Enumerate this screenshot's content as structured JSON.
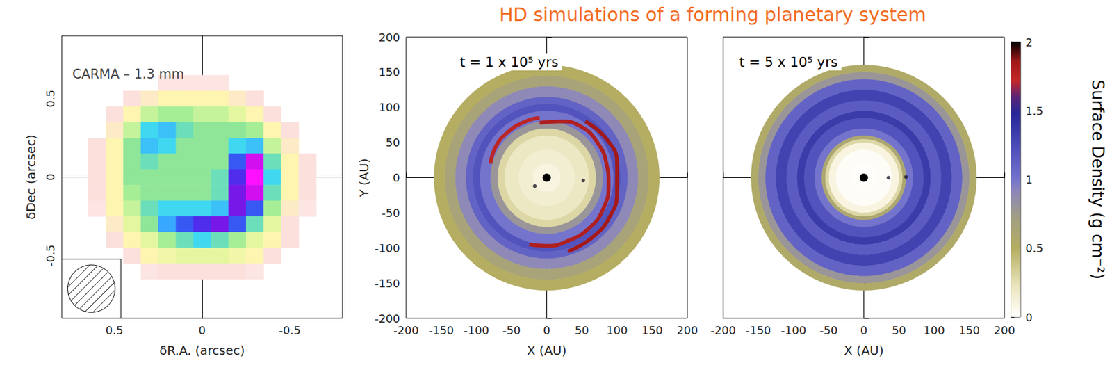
{
  "title": "HD simulations of a forming planetary system",
  "colorbar": {
    "range": [
      0,
      2
    ],
    "ticks": [
      0,
      0.5,
      1,
      1.5,
      2
    ],
    "label": "Surface Density (g cm⁻²)"
  },
  "chart_data": [
    {
      "type": "heatmap",
      "title": "CARMA – 1.3 mm",
      "xlabel": "δR.A. (arcsec)",
      "ylabel": "δDec (arcsec)",
      "xlim": [
        0.8,
        -0.8
      ],
      "xticks": [
        0.5,
        0,
        -0.5
      ],
      "ylim": [
        -0.9,
        0.9
      ],
      "yticks": [
        -0.5,
        0,
        0.5
      ],
      "x": [
        0.6,
        0.5,
        0.4,
        0.3,
        0.2,
        0.1,
        0,
        -0.1,
        -0.2,
        -0.3,
        -0.4,
        -0.5,
        -0.6
      ],
      "y": [
        0.6,
        0.5,
        0.4,
        0.3,
        0.2,
        0.1,
        0,
        -0.1,
        -0.2,
        -0.3,
        -0.4,
        -0.5,
        -0.6
      ],
      "cells": [
        [
          null,
          null,
          null,
          null,
          0.05,
          0.05,
          0.05,
          0.05,
          null,
          null,
          null,
          null,
          null
        ],
        [
          null,
          null,
          0.1,
          0.15,
          0.2,
          0.2,
          0.2,
          0.2,
          0.15,
          0.1,
          null,
          null,
          null
        ],
        [
          null,
          0.1,
          0.2,
          0.35,
          0.4,
          0.4,
          0.35,
          0.35,
          0.3,
          0.2,
          0.1,
          null,
          null
        ],
        [
          null,
          0.15,
          0.35,
          0.55,
          0.6,
          0.5,
          0.45,
          0.45,
          0.45,
          0.4,
          0.2,
          0.1,
          null
        ],
        [
          0.1,
          0.2,
          0.45,
          0.6,
          0.55,
          0.45,
          0.45,
          0.45,
          0.55,
          0.6,
          0.35,
          0.15,
          null
        ],
        [
          0.1,
          0.2,
          0.45,
          0.5,
          0.45,
          0.45,
          0.45,
          0.45,
          0.7,
          0.9,
          0.5,
          0.2,
          0.1
        ],
        [
          0.1,
          0.2,
          0.45,
          0.45,
          0.45,
          0.45,
          0.45,
          0.5,
          0.75,
          0.95,
          0.55,
          0.2,
          0.1
        ],
        [
          0.1,
          0.2,
          0.4,
          0.45,
          0.45,
          0.45,
          0.45,
          0.5,
          0.8,
          0.9,
          0.5,
          0.2,
          0.1
        ],
        [
          0.05,
          0.2,
          0.35,
          0.5,
          0.55,
          0.55,
          0.55,
          0.6,
          0.8,
          0.7,
          0.4,
          0.15,
          0.05
        ],
        [
          null,
          0.15,
          0.3,
          0.45,
          0.65,
          0.7,
          0.75,
          0.8,
          0.7,
          0.5,
          0.3,
          0.1,
          null
        ],
        [
          null,
          0.1,
          0.2,
          0.3,
          0.4,
          0.5,
          0.55,
          0.5,
          0.4,
          0.3,
          0.2,
          0.1,
          null
        ],
        [
          null,
          null,
          0.1,
          0.2,
          0.25,
          0.3,
          0.3,
          0.3,
          0.25,
          0.2,
          0.1,
          null,
          null
        ],
        [
          null,
          null,
          null,
          0.05,
          0.1,
          0.1,
          0.1,
          0.1,
          0.1,
          0.05,
          null,
          null,
          null
        ]
      ],
      "beam_diameter": 0.27
    },
    {
      "type": "disk",
      "title": "t = 1 x 10⁵ yrs",
      "xlabel": "X (AU)",
      "ylabel": "Y (AU)",
      "xlim": [
        -200,
        200
      ],
      "xticks": [
        -200,
        -150,
        -100,
        -50,
        0,
        50,
        100,
        150,
        200
      ],
      "ylim": [
        -200,
        200
      ],
      "yticks": [
        -200,
        -150,
        -100,
        -50,
        0,
        50,
        100,
        150,
        200
      ],
      "radii": [
        0,
        6,
        20,
        40,
        60,
        70,
        80,
        95,
        105,
        115,
        130,
        145,
        160
      ],
      "density": [
        2,
        0.1,
        0.15,
        0.2,
        0.3,
        0.8,
        1.0,
        1.2,
        1.1,
        0.9,
        0.65,
        0.5
      ],
      "arms": [
        {
          "density": 1.8,
          "points": [
            [
              -10,
              78
            ],
            [
              20,
              80
            ],
            [
              50,
              72
            ],
            [
              72,
              50
            ],
            [
              85,
              20
            ],
            [
              88,
              -10
            ],
            [
              80,
              -45
            ],
            [
              60,
              -72
            ],
            [
              30,
              -90
            ],
            [
              0,
              -97
            ],
            [
              -25,
              -95
            ]
          ]
        },
        {
          "density": 1.85,
          "points": [
            [
              55,
              80
            ],
            [
              85,
              55
            ],
            [
              100,
              20
            ],
            [
              100,
              -20
            ],
            [
              90,
              -55
            ],
            [
              65,
              -85
            ],
            [
              30,
              -105
            ]
          ]
        },
        {
          "density": 1.75,
          "points": [
            [
              -80,
              20
            ],
            [
              -72,
              45
            ],
            [
              -55,
              65
            ],
            [
              -30,
              80
            ],
            [
              -10,
              85
            ]
          ]
        }
      ],
      "planets": [
        {
          "x": -17,
          "y": -12
        },
        {
          "x": 52,
          "y": -4
        }
      ]
    },
    {
      "type": "disk",
      "title": "t = 5 x 10⁵ yrs",
      "xlabel": "X (AU)",
      "tick_labels": "x",
      "xlim": [
        -200,
        200
      ],
      "xticks": [
        -200,
        -150,
        -100,
        -50,
        0,
        50,
        100,
        150,
        200
      ],
      "ylim": [
        -200,
        200
      ],
      "yticks": [
        -200,
        -150,
        -100,
        -50,
        0,
        50,
        100,
        150,
        200
      ],
      "radii": [
        0,
        6,
        20,
        40,
        50,
        55,
        60,
        70,
        85,
        95,
        110,
        125,
        140,
        150,
        160
      ],
      "density": [
        2,
        0.02,
        0.03,
        0.1,
        0.3,
        0.6,
        1.0,
        1.2,
        1.35,
        1.15,
        1.3,
        1.1,
        0.8,
        0.55
      ],
      "arms": [],
      "planets": [
        {
          "x": 35,
          "y": 0
        },
        {
          "x": 60,
          "y": 1
        }
      ]
    }
  ]
}
